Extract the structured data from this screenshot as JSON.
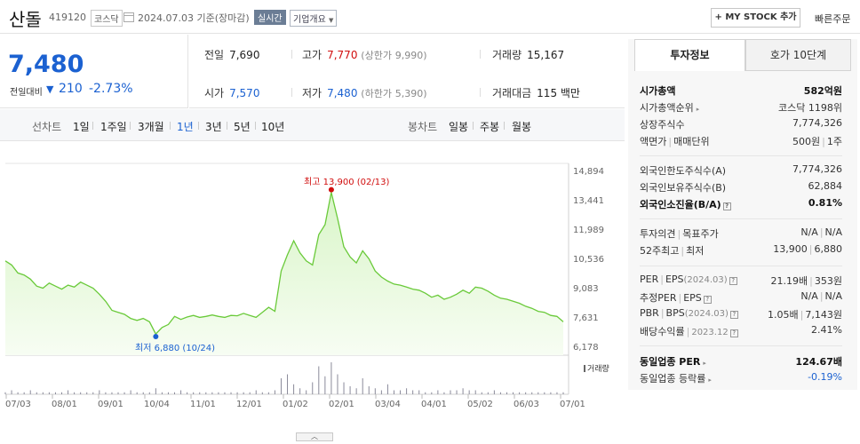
{
  "header": {
    "name": "산돌",
    "code": "419120",
    "market": "코스닥",
    "date": "2024.07.03",
    "date_suffix": "기준(장마감)",
    "realtime": "실시간",
    "overview": "기업개요",
    "mystock": "+ MY STOCK 추가",
    "quick_order": "빠른주문"
  },
  "price": {
    "current": "7,480",
    "diff_label": "전일대비",
    "diff": "210",
    "rate": "-2.73%",
    "color": "#1b61d1"
  },
  "quotes": {
    "prev_label": "전일",
    "prev": "7,690",
    "high_label": "고가",
    "high": "7,770",
    "upper_label": "(상한가",
    "upper": "9,990)",
    "volume_label": "거래량",
    "volume": "15,167",
    "open_label": "시가",
    "open": "7,570",
    "low_label": "저가",
    "low": "7,480",
    "lower_label": "(하한가",
    "lower": "5,390)",
    "amount_label": "거래대금",
    "amount": "115 백만"
  },
  "range_bar": {
    "line_label": "선차트",
    "ranges": [
      "1일",
      "1주일",
      "3개월",
      "1년",
      "3년",
      "5년",
      "10년"
    ],
    "active_range": "1년",
    "candle_label": "봉차트",
    "candles": [
      "일봉",
      "주봉",
      "월봉"
    ]
  },
  "chart_data": {
    "type": "area",
    "x_ticks": [
      "07/03",
      "08/01",
      "09/01",
      "10/04",
      "11/01",
      "12/01",
      "01/02",
      "02/01",
      "03/04",
      "04/01",
      "05/02",
      "06/03",
      "07/01"
    ],
    "y_ticks": [
      "14,894",
      "13,441",
      "11,989",
      "10,536",
      "9,083",
      "7,631",
      "6,178"
    ],
    "ylim": [
      6178,
      14894
    ],
    "series": [
      {
        "values": [
          10500,
          10300,
          9900,
          9800,
          9600,
          9250,
          9150,
          9400,
          9250,
          9100,
          9300,
          9200,
          9450,
          9300,
          9150,
          8850,
          8500,
          8050,
          7950,
          7850,
          7650,
          7550,
          7650,
          7480,
          6880,
          7200,
          7350,
          7750,
          7600,
          7720,
          7800,
          7700,
          7750,
          7820,
          7750,
          7700,
          7800,
          7780,
          7900,
          7800,
          7700,
          7950,
          8200,
          8000,
          10000,
          10800,
          11500,
          10900,
          10500,
          10300,
          11800,
          12300,
          13900,
          12600,
          11200,
          10700,
          10400,
          11000,
          10600,
          10000,
          9700,
          9500,
          9350,
          9300,
          9200,
          9100,
          9050,
          8900,
          8700,
          8800,
          8600,
          8700,
          8850,
          9050,
          8900,
          9200,
          9150,
          9000,
          8800,
          8650,
          8600,
          8500,
          8400,
          8250,
          8150,
          8000,
          7950,
          7800,
          7750,
          7480
        ]
      }
    ],
    "max_label": "최고",
    "max_value": "13,900",
    "max_date": "(02/13)",
    "min_label": "최저",
    "min_value": "6,880",
    "min_date": "(10/24)",
    "volume_label": "거래량",
    "volume_values": [
      1,
      2,
      1,
      1,
      2,
      1,
      1,
      1,
      1,
      1,
      2,
      1,
      1,
      1,
      1,
      2,
      1,
      1,
      1,
      1,
      2,
      1,
      1,
      1,
      3,
      1,
      1,
      1,
      2,
      1,
      1,
      1,
      1,
      1,
      1,
      1,
      1,
      1,
      1,
      1,
      2,
      1,
      1,
      2,
      8,
      10,
      5,
      3,
      2,
      6,
      14,
      9,
      16,
      10,
      6,
      4,
      3,
      8,
      4,
      3,
      2,
      5,
      2,
      2,
      3,
      2,
      2,
      1,
      1,
      2,
      1,
      2,
      2,
      3,
      2,
      2,
      1,
      1,
      2,
      1,
      1,
      1,
      1,
      1,
      1,
      1,
      1,
      1,
      1,
      1
    ],
    "colors": {
      "line": "#6aca3a",
      "fill_top": "#d9f5c8",
      "fill_bottom": "#f7fdf3",
      "max": "#d10e0e",
      "min": "#1b61d1"
    }
  },
  "side_panel": {
    "tab_active": "투자정보",
    "tab_other": "호가 10단계",
    "market_cap_label": "시가총액",
    "market_cap": "582억원",
    "rank_label": "시가총액순위",
    "rank_market": "코스닥",
    "rank": "1198위",
    "shares_label": "상장주식수",
    "shares": "7,774,326",
    "par_label": "액면가",
    "unit_label": "매매단위",
    "par": "500원",
    "unit": "1주",
    "foreign_limit_label": "외국인한도주식수(A)",
    "foreign_limit": "7,774,326",
    "foreign_hold_label": "외국인보유주식수(B)",
    "foreign_hold": "62,884",
    "foreign_rate_label": "외국인소진율(B/A)",
    "foreign_rate": "0.81%",
    "opinion_label": "투자의견",
    "target_label": "목표주가",
    "opinion": "N/A",
    "target": "N/A",
    "w52_label": "52주최고",
    "w52_low_label": "최저",
    "w52_high": "13,900",
    "w52_low": "6,880",
    "per_label": "PER",
    "eps_label": "EPS",
    "eps_date": "(2024.03)",
    "per": "21.19배",
    "eps": "353원",
    "est_per_label": "추정PER",
    "est_eps_label": "EPS",
    "est_per": "N/A",
    "est_eps": "N/A",
    "pbr_label": "PBR",
    "bps_label": "BPS",
    "bps_date": "(2024.03)",
    "pbr": "1.05배",
    "bps": "7,143원",
    "div_label": "배당수익률",
    "div_date": "2023.12",
    "div": "2.41%",
    "ind_per_label": "동일업종 PER",
    "ind_per": "124.67배",
    "ind_rate_label": "동일업종 등락률",
    "ind_rate": "-0.19%"
  }
}
